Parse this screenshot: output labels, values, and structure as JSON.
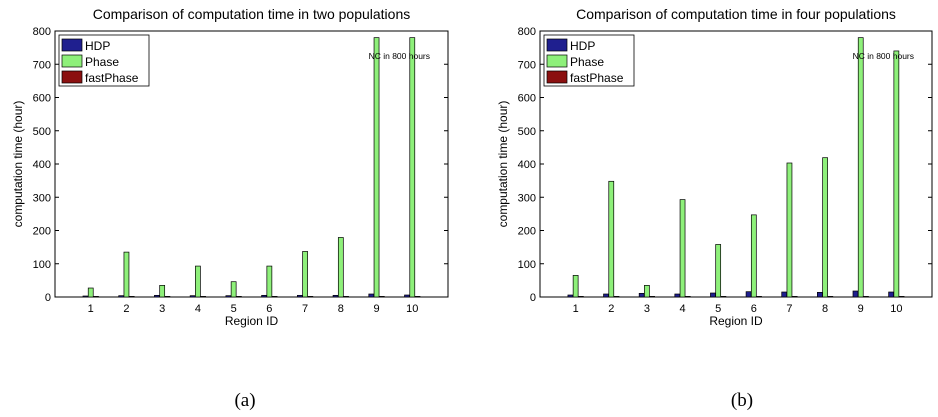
{
  "colors": {
    "HDP": "#1f1f8f",
    "Phase": "#8ef07a",
    "fastPhase": "#8b1010"
  },
  "captions": [
    "(a)",
    "(b)"
  ],
  "chart_data": [
    {
      "type": "bar",
      "title": "Comparison of computation time in two populations",
      "xlabel": "Region ID",
      "ylabel": "computation time (hour)",
      "categories": [
        "1",
        "2",
        "3",
        "4",
        "5",
        "6",
        "7",
        "8",
        "9",
        "10"
      ],
      "ylim": [
        0,
        800
      ],
      "yticks": [
        0,
        100,
        200,
        300,
        400,
        500,
        600,
        700,
        800
      ],
      "grid": false,
      "legend": "top-left",
      "annotation": "NC in 800 hours",
      "series": [
        {
          "name": "HDP",
          "values": [
            3,
            4,
            5,
            4,
            4,
            5,
            5,
            5,
            9,
            6
          ]
        },
        {
          "name": "Phase",
          "values": [
            27,
            135,
            35,
            93,
            46,
            93,
            137,
            179,
            780,
            780
          ]
        },
        {
          "name": "fastPhase",
          "values": [
            0.5,
            0.5,
            0.5,
            0.5,
            0.5,
            0.5,
            0.5,
            0.5,
            0.5,
            0.5
          ]
        }
      ]
    },
    {
      "type": "bar",
      "title": "Comparison of computation time in four populations",
      "xlabel": "Region ID",
      "ylabel": "computation time (hour)",
      "categories": [
        "1",
        "2",
        "3",
        "4",
        "5",
        "6",
        "7",
        "8",
        "9",
        "10"
      ],
      "ylim": [
        0,
        800
      ],
      "yticks": [
        0,
        100,
        200,
        300,
        400,
        500,
        600,
        700,
        800
      ],
      "grid": false,
      "legend": "top-left",
      "annotation": "NC in 800 hours",
      "series": [
        {
          "name": "HDP",
          "values": [
            6,
            9,
            11,
            9,
            12,
            16,
            15,
            14,
            18,
            15
          ]
        },
        {
          "name": "Phase",
          "values": [
            65,
            348,
            35,
            293,
            158,
            247,
            403,
            419,
            780,
            740
          ]
        },
        {
          "name": "fastPhase",
          "values": [
            1,
            1,
            1,
            1,
            1,
            1,
            1,
            1,
            1,
            1
          ]
        }
      ]
    }
  ]
}
